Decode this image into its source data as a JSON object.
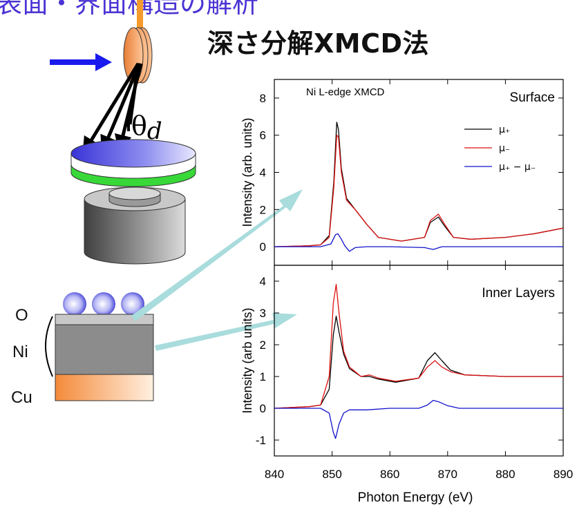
{
  "title": "深さ分解XMCD法",
  "top_fragment": "表面・界面構造の解析",
  "diagram": {
    "theta_label": "θ",
    "theta_sub": "d",
    "layer_labels": [
      "O",
      "Ni",
      "Cu"
    ]
  },
  "colors": {
    "mu_plus": "#000000",
    "mu_minus": "#dd1111",
    "difference": "#1111cc",
    "arrow_blue": "#1a1aee",
    "pointer_arrow": "#a9dcdc",
    "substrate_orange": "#f5a05a",
    "sample_blue": "#3b3bd6",
    "sample_green": "#38d838"
  },
  "chart_data": [
    {
      "type": "line",
      "annotation": "Ni L-edge XMCD",
      "panel_label": "Surface",
      "ylabel": "Intensity (arb. units)",
      "xlim": [
        840,
        890
      ],
      "ylim": [
        -1,
        9
      ],
      "yticks": [
        0,
        2,
        4,
        6,
        8
      ],
      "legend": [
        "μ₊",
        "μ₋",
        "μ₊ − μ₋"
      ],
      "legend_placement": "top-right",
      "series": [
        {
          "name": "μ₊",
          "x": [
            840,
            846,
            848,
            849.5,
            850.3,
            850.8,
            851.1,
            851.6,
            852.5,
            854,
            856,
            858,
            862,
            866,
            867,
            868.4,
            869.5,
            871,
            874,
            880,
            885,
            890
          ],
          "y": [
            0,
            0.05,
            0.1,
            0.6,
            3.5,
            6.7,
            6.3,
            4.2,
            2.6,
            2.0,
            1.2,
            0.5,
            0.3,
            0.5,
            1.3,
            1.6,
            1.1,
            0.5,
            0.4,
            0.5,
            0.7,
            1.0
          ]
        },
        {
          "name": "μ₋",
          "x": [
            840,
            846,
            848,
            849.5,
            850.3,
            850.8,
            851.1,
            851.6,
            852.5,
            854,
            856,
            858,
            862,
            866,
            867,
            868.4,
            869.5,
            871,
            874,
            880,
            885,
            890
          ],
          "y": [
            0,
            0.05,
            0.1,
            0.5,
            3.2,
            6.0,
            5.9,
            4.0,
            2.5,
            2.0,
            1.2,
            0.5,
            0.3,
            0.5,
            1.4,
            1.75,
            1.2,
            0.5,
            0.4,
            0.5,
            0.7,
            1.0
          ]
        },
        {
          "name": "μ₊ − μ₋",
          "x": [
            840,
            848,
            849.8,
            850.6,
            851,
            851.6,
            852.2,
            853,
            854,
            856,
            860,
            866,
            867.5,
            869,
            872,
            880,
            890
          ],
          "y": [
            0.0,
            0.0,
            0.15,
            0.65,
            0.7,
            0.4,
            0.05,
            -0.25,
            -0.05,
            0.0,
            0.0,
            -0.05,
            -0.15,
            0.0,
            0.0,
            0.0,
            0.0
          ]
        }
      ]
    },
    {
      "type": "line",
      "panel_label": "Inner Layers",
      "ylabel": "Intensity (arb units)",
      "xlabel": "Photon Energy (eV)",
      "xlim": [
        840,
        890
      ],
      "xticks": [
        840,
        850,
        860,
        870,
        880,
        890
      ],
      "ylim": [
        -1.5,
        4.5
      ],
      "yticks": [
        -1,
        0,
        1,
        2,
        3,
        4
      ],
      "series": [
        {
          "name": "μ₊",
          "x": [
            840,
            846,
            848,
            849.5,
            850.2,
            850.7,
            851.2,
            852,
            853,
            855,
            856.5,
            858,
            861,
            865,
            866.5,
            867.8,
            869,
            870.5,
            873,
            880,
            885,
            890
          ],
          "y": [
            0,
            0.05,
            0.1,
            0.6,
            2.3,
            2.9,
            2.4,
            1.7,
            1.25,
            1.0,
            1.0,
            0.92,
            0.82,
            0.95,
            1.5,
            1.75,
            1.5,
            1.2,
            1.05,
            1.0,
            1.0,
            1.0
          ]
        },
        {
          "name": "μ₋",
          "x": [
            840,
            846,
            848,
            849.5,
            850.2,
            850.7,
            851.2,
            852,
            853,
            855,
            856.5,
            858,
            861,
            865,
            866.5,
            867.8,
            869,
            870.5,
            873,
            880,
            885,
            890
          ],
          "y": [
            0,
            0.05,
            0.1,
            1.0,
            3.3,
            3.9,
            3.0,
            1.8,
            1.3,
            1.0,
            1.05,
            0.95,
            0.85,
            0.95,
            1.3,
            1.5,
            1.3,
            1.15,
            1.05,
            1.0,
            1.0,
            1.0
          ]
        },
        {
          "name": "μ₊ − μ₋",
          "x": [
            840,
            848,
            849.5,
            850.2,
            850.6,
            851.2,
            852,
            853,
            856,
            860,
            865,
            866.5,
            867.5,
            868.5,
            870,
            872,
            880,
            890
          ],
          "y": [
            0.0,
            0.0,
            -0.15,
            -0.75,
            -0.95,
            -0.5,
            -0.15,
            -0.05,
            -0.05,
            0.0,
            0.0,
            0.1,
            0.25,
            0.2,
            0.08,
            0.0,
            0.0,
            0.0
          ]
        }
      ]
    }
  ]
}
